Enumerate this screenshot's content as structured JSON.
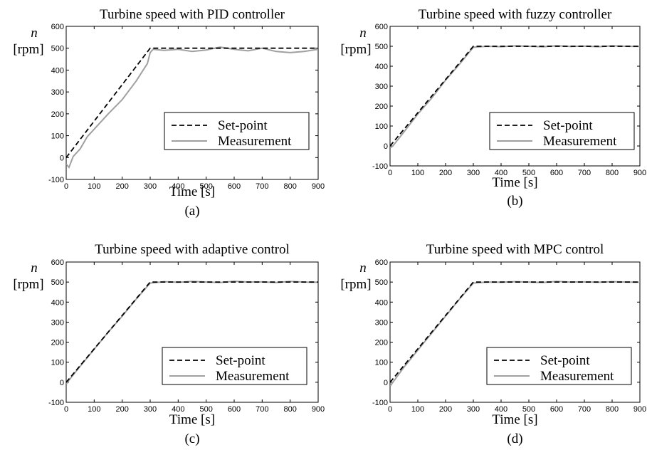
{
  "colors": {
    "setpoint": "#000000",
    "measurement": "#a0a0a0",
    "frame": "#000000",
    "background": "#ffffff"
  },
  "chart_data": [
    {
      "type": "line",
      "title": "Turbine speed with PID controller",
      "xlabel": "Time [s]",
      "ylabel_symbol": "n",
      "ylabel_unit": "[rpm]",
      "subcaption": "(a)",
      "xlim": [
        0,
        900
      ],
      "ylim": [
        -100,
        600
      ],
      "xticks": [
        0,
        100,
        200,
        300,
        400,
        500,
        600,
        700,
        800,
        900
      ],
      "yticks": [
        -100,
        0,
        100,
        200,
        300,
        400,
        500,
        600
      ],
      "legend": {
        "position": "bottom-right",
        "entries": [
          "Set-point",
          "Measurement"
        ]
      },
      "grid": false,
      "series": [
        {
          "name": "Set-point",
          "style": "dashed",
          "x": [
            0,
            300,
            900
          ],
          "y": [
            0,
            500,
            500
          ]
        },
        {
          "name": "Measurement",
          "style": "solid",
          "x": [
            0,
            10,
            25,
            50,
            75,
            100,
            150,
            200,
            250,
            290,
            300,
            310,
            350,
            400,
            450,
            500,
            550,
            600,
            650,
            700,
            750,
            800,
            850,
            900
          ],
          "y": [
            -30,
            -45,
            5,
            40,
            95,
            130,
            200,
            265,
            350,
            430,
            480,
            495,
            490,
            495,
            485,
            492,
            505,
            495,
            488,
            500,
            485,
            480,
            485,
            495
          ]
        }
      ]
    },
    {
      "type": "line",
      "title": "Turbine speed with fuzzy controller",
      "xlabel": "Time [s]",
      "ylabel_symbol": "n",
      "ylabel_unit": "[rpm]",
      "subcaption": "(b)",
      "xlim": [
        0,
        900
      ],
      "ylim": [
        -100,
        600
      ],
      "xticks": [
        0,
        100,
        200,
        300,
        400,
        500,
        600,
        700,
        800,
        900
      ],
      "yticks": [
        -100,
        0,
        100,
        200,
        300,
        400,
        500,
        600
      ],
      "legend": {
        "position": "bottom-right",
        "entries": [
          "Set-point",
          "Measurement"
        ]
      },
      "grid": false,
      "series": [
        {
          "name": "Set-point",
          "style": "dashed",
          "x": [
            0,
            300,
            900
          ],
          "y": [
            0,
            500,
            500
          ]
        },
        {
          "name": "Measurement",
          "style": "solid",
          "x": [
            0,
            10,
            50,
            100,
            150,
            200,
            250,
            300,
            350,
            400,
            450,
            500,
            550,
            600,
            650,
            700,
            750,
            800,
            850,
            900
          ],
          "y": [
            -10,
            0,
            70,
            160,
            240,
            330,
            410,
            495,
            500,
            498,
            502,
            500,
            497,
            503,
            499,
            501,
            498,
            502,
            500,
            499
          ]
        }
      ]
    },
    {
      "type": "line",
      "title": "Turbine speed with adaptive control",
      "xlabel": "Time [s]",
      "ylabel_symbol": "n",
      "ylabel_unit": "[rpm]",
      "subcaption": "(c)",
      "xlim": [
        0,
        900
      ],
      "ylim": [
        -100,
        600
      ],
      "xticks": [
        0,
        100,
        200,
        300,
        400,
        500,
        600,
        700,
        800,
        900
      ],
      "yticks": [
        -100,
        0,
        100,
        200,
        300,
        400,
        500,
        600
      ],
      "legend": {
        "position": "bottom-right",
        "entries": [
          "Set-point",
          "Measurement"
        ]
      },
      "grid": false,
      "series": [
        {
          "name": "Set-point",
          "style": "dashed",
          "x": [
            0,
            300,
            900
          ],
          "y": [
            0,
            500,
            500
          ]
        },
        {
          "name": "Measurement",
          "style": "solid",
          "x": [
            0,
            10,
            50,
            100,
            150,
            200,
            250,
            300,
            350,
            400,
            450,
            500,
            550,
            600,
            650,
            700,
            750,
            800,
            850,
            900
          ],
          "y": [
            -10,
            10,
            80,
            165,
            250,
            330,
            415,
            495,
            502,
            499,
            503,
            500,
            498,
            504,
            500,
            501,
            498,
            503,
            500,
            499
          ]
        }
      ]
    },
    {
      "type": "line",
      "title": "Turbine speed with MPC control",
      "xlabel": "Time [s]",
      "ylabel_symbol": "n",
      "ylabel_unit": "[rpm]",
      "subcaption": "(d)",
      "xlim": [
        0,
        900
      ],
      "ylim": [
        -100,
        600
      ],
      "xticks": [
        0,
        100,
        200,
        300,
        400,
        500,
        600,
        700,
        800,
        900
      ],
      "yticks": [
        -100,
        0,
        100,
        200,
        300,
        400,
        500,
        600
      ],
      "legend": {
        "position": "bottom-right",
        "entries": [
          "Set-point",
          "Measurement"
        ]
      },
      "grid": false,
      "series": [
        {
          "name": "Set-point",
          "style": "dashed",
          "x": [
            0,
            300,
            900
          ],
          "y": [
            0,
            500,
            500
          ]
        },
        {
          "name": "Measurement",
          "style": "solid",
          "x": [
            0,
            10,
            50,
            100,
            150,
            200,
            250,
            300,
            350,
            400,
            450,
            500,
            550,
            600,
            650,
            700,
            750,
            800,
            850,
            900
          ],
          "y": [
            -20,
            0,
            75,
            160,
            245,
            330,
            415,
            495,
            500,
            499,
            502,
            500,
            498,
            503,
            500,
            501,
            499,
            502,
            500,
            499
          ]
        }
      ]
    }
  ]
}
